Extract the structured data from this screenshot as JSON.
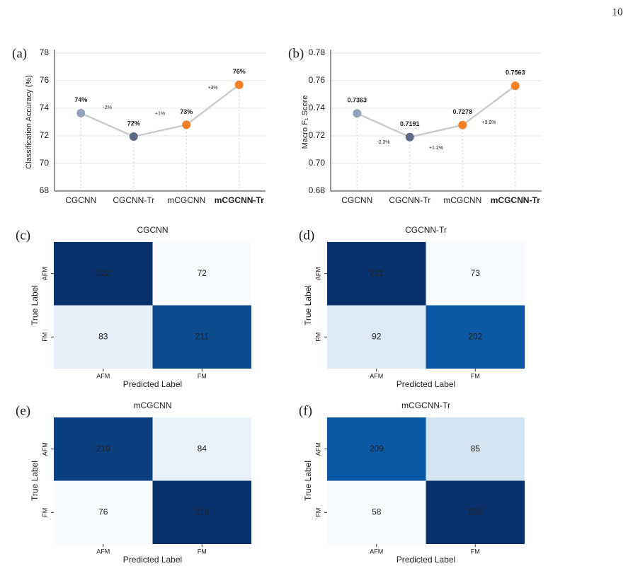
{
  "page_number": "10",
  "chart_data": [
    {
      "type": "line",
      "panel": "(a)",
      "ylabel": "Classification Accuracy (%)",
      "categories": [
        "CGCNN",
        "CGCNN-Tr",
        "mCGCNN",
        "mCGCNN-Tr"
      ],
      "values": [
        73.65,
        71.95,
        72.8,
        75.7
      ],
      "value_labels": [
        "74%",
        "72%",
        "73%",
        "76%"
      ],
      "point_colors": [
        "#94a3bd",
        "#5d6a85",
        "#f28228",
        "#f28228"
      ],
      "line_color": "#cccccc",
      "annotations": [
        "-2%",
        "+1%",
        "+3%"
      ],
      "ylim": [
        68,
        78
      ],
      "yticks": [
        68,
        70,
        72,
        74,
        76,
        78
      ],
      "grid": true,
      "highlight_category": 3,
      "highlight_color": "#f28228"
    },
    {
      "type": "line",
      "panel": "(b)",
      "ylabel": "Macro F₁ Score",
      "categories": [
        "CGCNN",
        "CGCNN-Tr",
        "mCGCNN",
        "mCGCNN-Tr"
      ],
      "values": [
        0.7363,
        0.7191,
        0.7278,
        0.7563
      ],
      "point_colors": [
        "#94a3bd",
        "#5d6a85",
        "#f28228",
        "#f28228"
      ],
      "line_color": "#cccccc",
      "annotations": [
        "-2.3%",
        "+1.2%",
        "+3.9%"
      ],
      "ylim": [
        0.68,
        0.78
      ],
      "yticks": [
        0.68,
        {
          "value": 0.7,
          "label": "0.70"
        },
        0.72,
        0.74,
        0.76,
        0.78
      ],
      "grid": true,
      "highlight_category": 3,
      "highlight_color": "#f28228"
    },
    {
      "type": "heatmap",
      "panel": "(c)",
      "title": "CGCNN",
      "xlabel": "Predicted Label",
      "ylabel": "True Label",
      "x": [
        "AFM",
        "FM"
      ],
      "y": [
        "AFM",
        "FM"
      ],
      "values": [
        [
          222,
          72
        ],
        [
          83,
          211
        ]
      ],
      "colors": [
        [
          "#08306b",
          "#f7fbff"
        ],
        [
          "#e7f0fa",
          "#0d4a8e"
        ]
      ]
    },
    {
      "type": "heatmap",
      "panel": "(d)",
      "title": "CGCNN-Tr",
      "xlabel": "Predicted Label",
      "ylabel": "True Label",
      "x": [
        "AFM",
        "FM"
      ],
      "y": [
        "AFM",
        "FM"
      ],
      "values": [
        [
          221,
          73
        ],
        [
          92,
          202
        ]
      ],
      "colors": [
        [
          "#08306b",
          "#f7fbff"
        ],
        [
          "#dce9f6",
          "#0b58a4"
        ]
      ]
    },
    {
      "type": "heatmap",
      "panel": "(e)",
      "title": "mCGCNN",
      "xlabel": "Predicted Label",
      "ylabel": "True Label",
      "x": [
        "AFM",
        "FM"
      ],
      "y": [
        "AFM",
        "FM"
      ],
      "values": [
        [
          210,
          84
        ],
        [
          76,
          218
        ]
      ],
      "colors": [
        [
          "#0b3f7f",
          "#e8f1fa"
        ],
        [
          "#f7fbff",
          "#08306b"
        ]
      ]
    },
    {
      "type": "heatmap",
      "panel": "(f)",
      "title": "mCGCNN-Tr",
      "xlabel": "Predicted Label",
      "ylabel": "True Label",
      "x": [
        "AFM",
        "FM"
      ],
      "y": [
        "AFM",
        "FM"
      ],
      "values": [
        [
          209,
          85
        ],
        [
          58,
          236
        ]
      ],
      "colors": [
        [
          "#0b58a4",
          "#d3e4f3"
        ],
        [
          "#f7fbff",
          "#08306b"
        ]
      ]
    }
  ]
}
